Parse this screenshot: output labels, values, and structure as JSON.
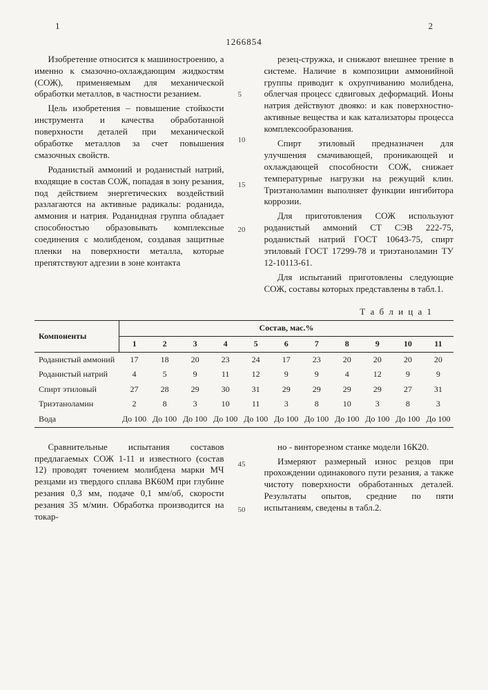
{
  "doc_number": "1266854",
  "page_left": "1",
  "page_right": "2",
  "line_markers": {
    "l5": "5",
    "l10": "10",
    "l15": "15",
    "l20": "20",
    "l45": "45",
    "l50": "50"
  },
  "col1": {
    "p1": "Изобретение относится к машиностроению, а именно к смазочно-охлаждающим жидкостям (СОЖ), применяемым для механической обработки металлов, в частности резанием.",
    "p2": "Цель изобретения – повышение стойкости инструмента и качества обработанной поверхности деталей при механической обработке металлов за счет повышения смазочных свойств.",
    "p3": "Роданистый аммоний и роданистый натрий, входящие в состав СОЖ, попадая в зону резания, под действием энергетических воздействий разлагаются на активные радикалы: роданида, аммония и натрия. Роданидная группа обладает способностью образовывать комплексные соединения с молибденом, создавая защитные пленки на поверхности металла, которые препятствуют адгезии в зоне контакта"
  },
  "col2": {
    "p1": "резец-стружка, и снижают внешнее трение в системе. Наличие в композиции аммонийной группы приводит к охрупчиванию молибдена, облегчая процесс сдвиговых деформаций. Ионы натрия действуют двояко: и как поверхностно-активные вещества и как катализаторы процесса комплексообразования.",
    "p2": "Спирт этиловый предназначен для улучшения смачивающей, проникающей и охлаждающей способности СОЖ, снижает температурные нагрузки на режущий клин. Триэтаноламин выполняет функции ингибитора коррозии.",
    "p3": "Для приготовления СОЖ используют роданистый аммоний СТ СЭВ 222-75, роданистый натрий ГОСТ 10643-75, спирт этиловый ГОСТ 17299-78 и триэтаноламин ТУ 12-10113-61.",
    "p4": "Для испытаний приготовлены следующие СОЖ, составы которых представлены в табл.1."
  },
  "table1": {
    "caption": "Т а б л и ц а  1",
    "head_components": "Компоненты",
    "head_composition": "Состав, мас.%",
    "cols": [
      "1",
      "2",
      "3",
      "4",
      "5",
      "6",
      "7",
      "8",
      "9",
      "10",
      "11"
    ],
    "rows": [
      {
        "name": "Роданистый аммоний",
        "vals": [
          "17",
          "18",
          "20",
          "23",
          "24",
          "17",
          "23",
          "20",
          "20",
          "20",
          "20"
        ]
      },
      {
        "name": "Роданистый натрий",
        "vals": [
          "4",
          "5",
          "9",
          "11",
          "12",
          "9",
          "9",
          "4",
          "12",
          "9",
          "9"
        ]
      },
      {
        "name": "Спирт этиловый",
        "vals": [
          "27",
          "28",
          "29",
          "30",
          "31",
          "29",
          "29",
          "29",
          "29",
          "27",
          "31"
        ]
      },
      {
        "name": "Триэтаноламин",
        "vals": [
          "2",
          "8",
          "3",
          "10",
          "11",
          "3",
          "8",
          "10",
          "3",
          "8",
          "3"
        ]
      },
      {
        "name": "Вода",
        "vals": [
          "До 100",
          "До 100",
          "До 100",
          "До 100",
          "До 100",
          "До 100",
          "До 100",
          "До 100",
          "До 100",
          "До 100",
          "До 100"
        ]
      }
    ]
  },
  "bottom": {
    "c1p1": "Сравнительные испытания составов предлагаемых СОЖ 1-11 и известного (состав 12) проводят точением молибдена марки МЧ резцами из твердого сплава ВК60М при глубине резания 0,3 мм, подаче 0,1 мм/об, скорости резания 35 м/мин. Обработка производится на токар-",
    "c2p1": "но - винторезном станке модели 16К20.",
    "c2p2": "Измеряют размерный износ резцов при прохождении одинакового пути резания, а также чистоту поверхности обработанных деталей. Результаты опытов, средние по пяти испытаниям, сведены в табл.2."
  }
}
